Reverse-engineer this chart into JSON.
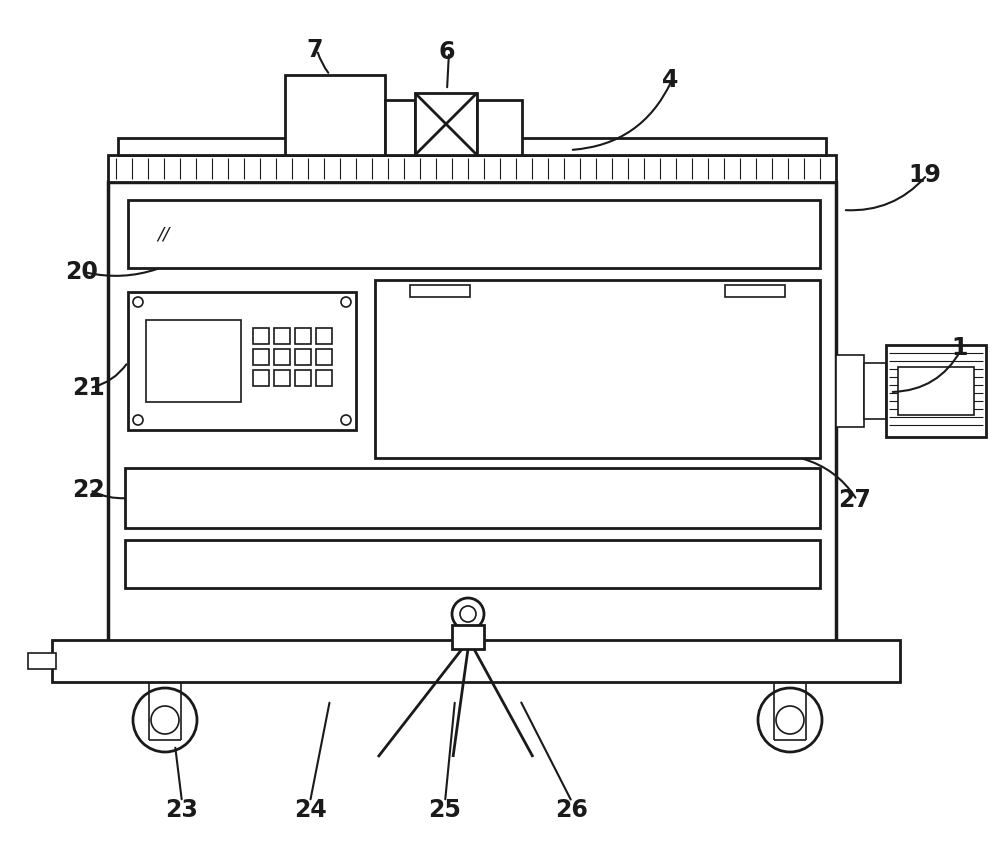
{
  "bg_color": "#ffffff",
  "line_color": "#1a1a1a",
  "lw": 2.0,
  "tlw": 1.2
}
